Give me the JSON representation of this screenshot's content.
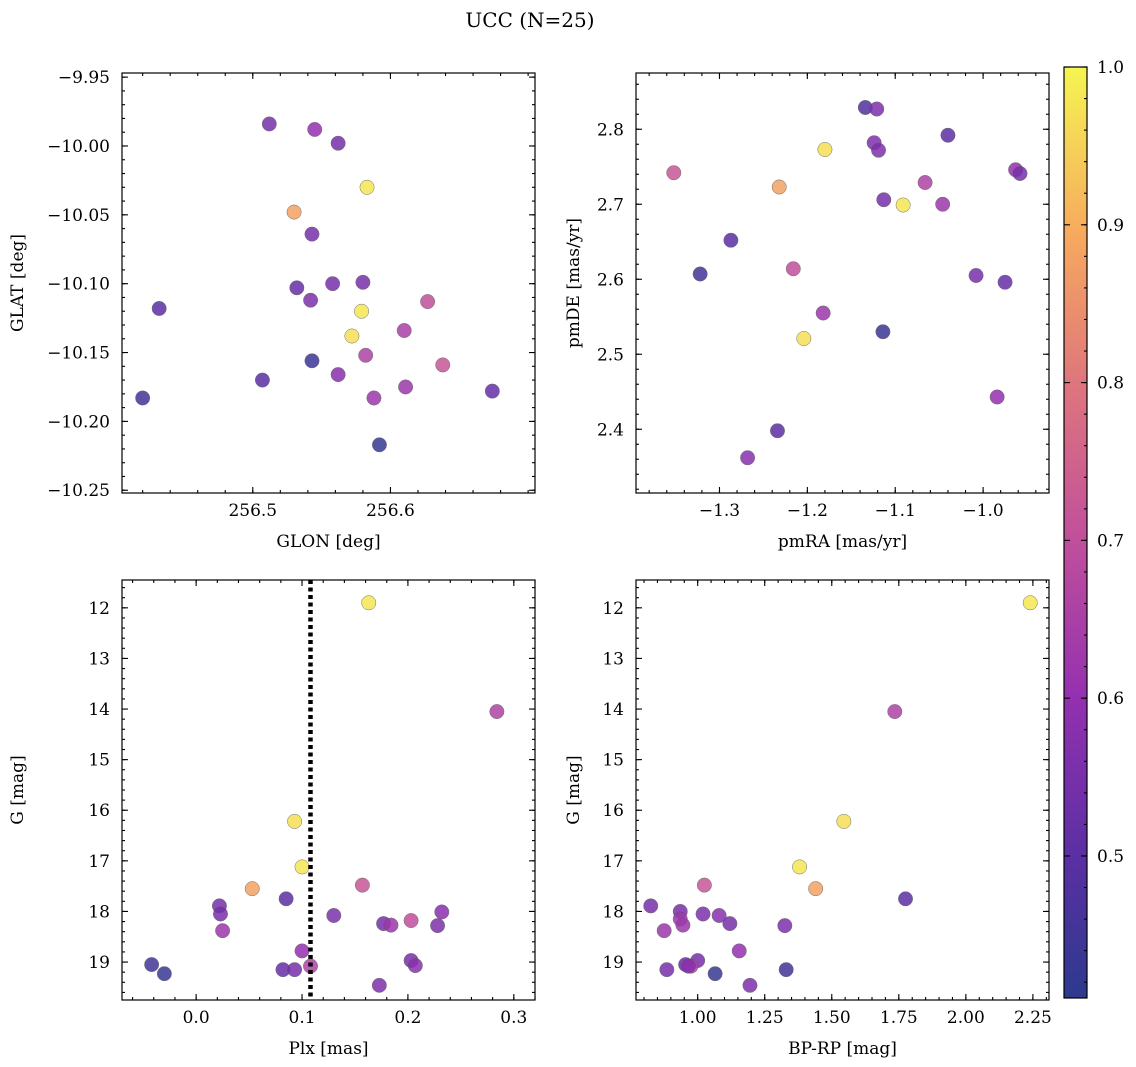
{
  "chart_data": {
    "type": "scatter",
    "title": "UCC (N=25)",
    "colorbar": {
      "colormap": "plasma",
      "range": [
        0.41,
        1.0
      ],
      "ticks": [
        0.5,
        0.6,
        0.7,
        0.8,
        0.9,
        1.0
      ],
      "tick_labels": [
        "0.5",
        "0.6",
        "0.7",
        "0.8",
        "0.9",
        "1.0"
      ]
    },
    "grid": false,
    "panels": [
      {
        "id": "glon-glat",
        "xlabel": "GLON [deg]",
        "ylabel": "GLAT [deg]",
        "xlim": [
          256.405,
          256.705
        ],
        "ylim": [
          -10.252,
          -9.947
        ],
        "yinvert": false,
        "xticks": [
          256.5,
          256.6
        ],
        "xtick_labels": [
          "256.5",
          "256.6"
        ],
        "yticks": [
          -9.95,
          -10.0,
          -10.05,
          -10.1,
          -10.15,
          -10.2,
          -10.25
        ],
        "ytick_labels": [
          "−9.95",
          "−10.00",
          "−10.05",
          "−10.10",
          "−10.15",
          "−10.20",
          "−10.25"
        ],
        "points": [
          {
            "x": 256.512,
            "y": -9.984,
            "c": 0.55
          },
          {
            "x": 256.545,
            "y": -9.988,
            "c": 0.6
          },
          {
            "x": 256.562,
            "y": -9.998,
            "c": 0.55
          },
          {
            "x": 256.583,
            "y": -10.03,
            "c": 0.98
          },
          {
            "x": 256.53,
            "y": -10.048,
            "c": 0.88
          },
          {
            "x": 256.543,
            "y": -10.064,
            "c": 0.55
          },
          {
            "x": 256.432,
            "y": -10.118,
            "c": 0.5
          },
          {
            "x": 256.532,
            "y": -10.103,
            "c": 0.52
          },
          {
            "x": 256.558,
            "y": -10.1,
            "c": 0.55
          },
          {
            "x": 256.58,
            "y": -10.099,
            "c": 0.55
          },
          {
            "x": 256.542,
            "y": -10.112,
            "c": 0.56
          },
          {
            "x": 256.579,
            "y": -10.12,
            "c": 0.98
          },
          {
            "x": 256.627,
            "y": -10.113,
            "c": 0.7
          },
          {
            "x": 256.572,
            "y": -10.138,
            "c": 0.97
          },
          {
            "x": 256.61,
            "y": -10.134,
            "c": 0.65
          },
          {
            "x": 256.582,
            "y": -10.152,
            "c": 0.66
          },
          {
            "x": 256.638,
            "y": -10.159,
            "c": 0.72
          },
          {
            "x": 256.543,
            "y": -10.156,
            "c": 0.44
          },
          {
            "x": 256.507,
            "y": -10.17,
            "c": 0.5
          },
          {
            "x": 256.562,
            "y": -10.166,
            "c": 0.58
          },
          {
            "x": 256.42,
            "y": -10.183,
            "c": 0.45
          },
          {
            "x": 256.611,
            "y": -10.175,
            "c": 0.62
          },
          {
            "x": 256.674,
            "y": -10.178,
            "c": 0.52
          },
          {
            "x": 256.588,
            "y": -10.183,
            "c": 0.62
          },
          {
            "x": 256.592,
            "y": -10.217,
            "c": 0.43
          }
        ]
      },
      {
        "id": "pmra-pmde",
        "xlabel": "pmRA [mas/yr]",
        "ylabel": "pmDE [mas/yr]",
        "xlim": [
          -1.395,
          -0.925
        ],
        "ylim": [
          2.315,
          2.875
        ],
        "yinvert": false,
        "xticks": [
          -1.3,
          -1.2,
          -1.1,
          -1.0
        ],
        "xtick_labels": [
          "−1.3",
          "−1.2",
          "−1.1",
          "−1.0"
        ],
        "yticks": [
          2.4,
          2.5,
          2.6,
          2.7,
          2.8
        ],
        "ytick_labels": [
          "2.4",
          "2.5",
          "2.6",
          "2.7",
          "2.8"
        ],
        "points": [
          {
            "x": -1.134,
            "y": 2.829,
            "c": 0.48
          },
          {
            "x": -1.121,
            "y": 2.827,
            "c": 0.56
          },
          {
            "x": -1.04,
            "y": 2.792,
            "c": 0.5
          },
          {
            "x": -1.124,
            "y": 2.782,
            "c": 0.56
          },
          {
            "x": -1.119,
            "y": 2.772,
            "c": 0.56
          },
          {
            "x": -1.18,
            "y": 2.773,
            "c": 0.97
          },
          {
            "x": -0.963,
            "y": 2.746,
            "c": 0.6
          },
          {
            "x": -0.958,
            "y": 2.741,
            "c": 0.55
          },
          {
            "x": -1.352,
            "y": 2.742,
            "c": 0.72
          },
          {
            "x": -1.066,
            "y": 2.729,
            "c": 0.66
          },
          {
            "x": -1.232,
            "y": 2.723,
            "c": 0.88
          },
          {
            "x": -1.113,
            "y": 2.706,
            "c": 0.55
          },
          {
            "x": -1.091,
            "y": 2.699,
            "c": 0.98
          },
          {
            "x": -1.046,
            "y": 2.7,
            "c": 0.62
          },
          {
            "x": -1.287,
            "y": 2.652,
            "c": 0.5
          },
          {
            "x": -1.216,
            "y": 2.614,
            "c": 0.7
          },
          {
            "x": -1.322,
            "y": 2.607,
            "c": 0.45
          },
          {
            "x": -1.008,
            "y": 2.605,
            "c": 0.55
          },
          {
            "x": -0.975,
            "y": 2.596,
            "c": 0.52
          },
          {
            "x": -1.182,
            "y": 2.555,
            "c": 0.62
          },
          {
            "x": -1.114,
            "y": 2.53,
            "c": 0.44
          },
          {
            "x": -1.204,
            "y": 2.521,
            "c": 0.97
          },
          {
            "x": -0.984,
            "y": 2.443,
            "c": 0.6
          },
          {
            "x": -1.234,
            "y": 2.398,
            "c": 0.5
          },
          {
            "x": -1.268,
            "y": 2.362,
            "c": 0.58
          }
        ]
      },
      {
        "id": "plx-g",
        "xlabel": "Plx [mas]",
        "ylabel": "G [mag]",
        "xlim": [
          -0.07,
          0.32
        ],
        "ylim": [
          19.75,
          11.45
        ],
        "yinvert": true,
        "xticks": [
          0.0,
          0.1,
          0.2,
          0.3
        ],
        "xtick_labels": [
          "0.0",
          "0.1",
          "0.2",
          "0.3"
        ],
        "yticks": [
          12,
          13,
          14,
          15,
          16,
          17,
          18,
          19
        ],
        "ytick_labels": [
          "12",
          "13",
          "14",
          "15",
          "16",
          "17",
          "18",
          "19"
        ],
        "vline": 0.108,
        "points": [
          {
            "x": 0.163,
            "y": 11.9,
            "c": 0.98
          },
          {
            "x": 0.284,
            "y": 14.05,
            "c": 0.66
          },
          {
            "x": 0.093,
            "y": 16.22,
            "c": 0.97
          },
          {
            "x": 0.1,
            "y": 17.12,
            "c": 0.98
          },
          {
            "x": 0.053,
            "y": 17.55,
            "c": 0.88
          },
          {
            "x": 0.157,
            "y": 17.48,
            "c": 0.72
          },
          {
            "x": 0.085,
            "y": 17.75,
            "c": 0.5
          },
          {
            "x": 0.022,
            "y": 17.89,
            "c": 0.55
          },
          {
            "x": 0.023,
            "y": 18.05,
            "c": 0.55
          },
          {
            "x": 0.13,
            "y": 18.08,
            "c": 0.56
          },
          {
            "x": 0.232,
            "y": 18.01,
            "c": 0.58
          },
          {
            "x": 0.025,
            "y": 18.38,
            "c": 0.62
          },
          {
            "x": 0.203,
            "y": 18.18,
            "c": 0.7
          },
          {
            "x": 0.177,
            "y": 18.24,
            "c": 0.55
          },
          {
            "x": 0.184,
            "y": 18.27,
            "c": 0.62
          },
          {
            "x": 0.228,
            "y": 18.28,
            "c": 0.56
          },
          {
            "x": 0.1,
            "y": 18.78,
            "c": 0.6
          },
          {
            "x": 0.203,
            "y": 18.97,
            "c": 0.55
          },
          {
            "x": 0.207,
            "y": 19.07,
            "c": 0.58
          },
          {
            "x": -0.042,
            "y": 19.05,
            "c": 0.45
          },
          {
            "x": -0.03,
            "y": 19.23,
            "c": 0.43
          },
          {
            "x": 0.082,
            "y": 19.15,
            "c": 0.52
          },
          {
            "x": 0.093,
            "y": 19.15,
            "c": 0.55
          },
          {
            "x": 0.108,
            "y": 19.08,
            "c": 0.66
          },
          {
            "x": 0.173,
            "y": 19.46,
            "c": 0.56
          }
        ]
      },
      {
        "id": "bprp-g",
        "xlabel": "BP-RP [mag]",
        "ylabel": "G [mag]",
        "xlim": [
          0.77,
          2.31
        ],
        "ylim": [
          19.75,
          11.45
        ],
        "yinvert": true,
        "xticks": [
          1.0,
          1.25,
          1.5,
          1.75,
          2.0,
          2.25
        ],
        "xtick_labels": [
          "1.00",
          "1.25",
          "1.50",
          "1.75",
          "2.00",
          "2.25"
        ],
        "yticks": [
          12,
          13,
          14,
          15,
          16,
          17,
          18,
          19
        ],
        "ytick_labels": [
          "12",
          "13",
          "14",
          "15",
          "16",
          "17",
          "18",
          "19"
        ],
        "points": [
          {
            "x": 2.24,
            "y": 11.9,
            "c": 0.98
          },
          {
            "x": 1.735,
            "y": 14.05,
            "c": 0.66
          },
          {
            "x": 1.545,
            "y": 16.22,
            "c": 0.97
          },
          {
            "x": 1.38,
            "y": 17.12,
            "c": 0.98
          },
          {
            "x": 1.44,
            "y": 17.55,
            "c": 0.88
          },
          {
            "x": 1.025,
            "y": 17.48,
            "c": 0.72
          },
          {
            "x": 1.775,
            "y": 17.75,
            "c": 0.5
          },
          {
            "x": 0.825,
            "y": 17.89,
            "c": 0.55
          },
          {
            "x": 0.935,
            "y": 18.0,
            "c": 0.55
          },
          {
            "x": 1.02,
            "y": 18.05,
            "c": 0.56
          },
          {
            "x": 1.08,
            "y": 18.08,
            "c": 0.58
          },
          {
            "x": 0.935,
            "y": 18.15,
            "c": 0.62
          },
          {
            "x": 0.945,
            "y": 18.27,
            "c": 0.62
          },
          {
            "x": 0.875,
            "y": 18.38,
            "c": 0.62
          },
          {
            "x": 1.12,
            "y": 18.24,
            "c": 0.55
          },
          {
            "x": 1.325,
            "y": 18.28,
            "c": 0.56
          },
          {
            "x": 1.155,
            "y": 18.78,
            "c": 0.6
          },
          {
            "x": 1.0,
            "y": 18.97,
            "c": 0.55
          },
          {
            "x": 0.955,
            "y": 19.05,
            "c": 0.52
          },
          {
            "x": 0.975,
            "y": 19.08,
            "c": 0.66
          },
          {
            "x": 0.885,
            "y": 19.15,
            "c": 0.55
          },
          {
            "x": 1.33,
            "y": 19.15,
            "c": 0.45
          },
          {
            "x": 1.065,
            "y": 19.23,
            "c": 0.43
          },
          {
            "x": 1.195,
            "y": 19.46,
            "c": 0.56
          },
          {
            "x": 0.965,
            "y": 19.08,
            "c": 0.58
          }
        ]
      }
    ]
  }
}
